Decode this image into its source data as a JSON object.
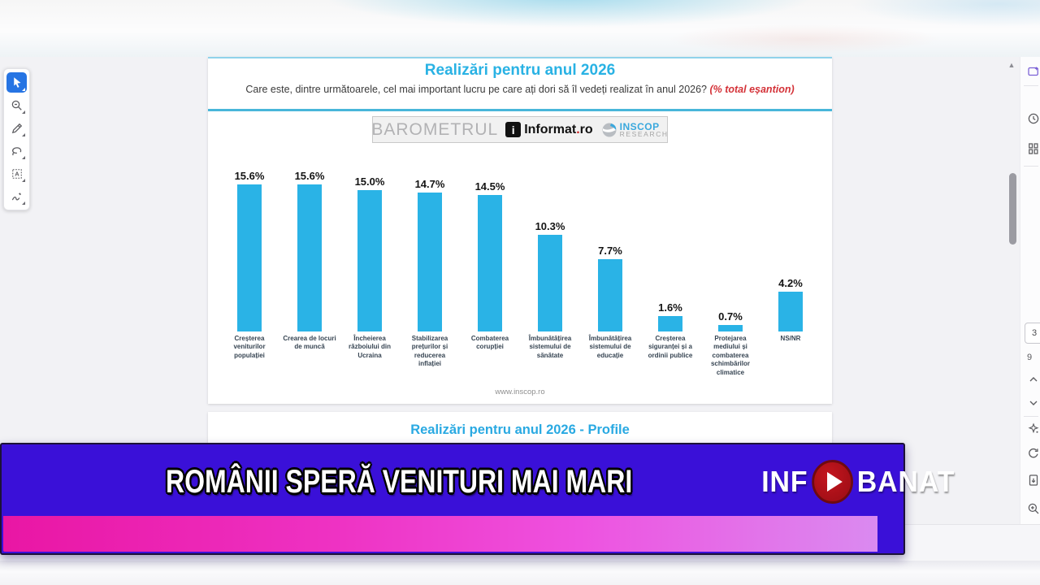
{
  "document": {
    "page3": {
      "title": "Realizări pentru anul 2026",
      "question": "Care este, dintre următoarele, cel mai important lucru pe care ați dori să îl vedeți realizat în anul 2026? ",
      "question_note": "(% total eșantion)",
      "brand_bar": {
        "left": "BAROMETRUL",
        "informat_icon_letter": "i",
        "informat_name": "Informat",
        "informat_dot": ".",
        "informat_tld": "ro",
        "inscop_line1": "INSCOP",
        "inscop_line2": "RESEARCH"
      },
      "source_url": "www.inscop.ro"
    },
    "page4": {
      "title": "Realizări pentru anul 2026 - Profile"
    }
  },
  "chart_data": {
    "type": "bar",
    "title": "Realizări pentru anul 2026",
    "categories": [
      "Creșterea veniturilor populației",
      "Crearea de locuri de muncă",
      "Încheierea războiului din Ucraina",
      "Stabilizarea prețurilor și reducerea inflației",
      "Combaterea corupției",
      "Îmbunătățirea sistemului de sănătate",
      "Îmbunătățirea sistemului de educație",
      "Creșterea siguranței și a ordinii publice",
      "Protejarea mediului și combaterea schimbărilor climatice",
      "NS/NR"
    ],
    "values": [
      15.6,
      15.6,
      15.0,
      14.7,
      14.5,
      10.3,
      7.7,
      1.6,
      0.7,
      4.2
    ],
    "labels": [
      "15.6%",
      "15.6%",
      "15.0%",
      "14.7%",
      "14.5%",
      "10.3%",
      "7.7%",
      "1.6%",
      "0.7%",
      "4.2%"
    ],
    "bar_color": "#2ab3e6",
    "ylim": [
      0,
      17
    ],
    "grid": false,
    "legend": false,
    "xlabel": "",
    "ylabel": ""
  },
  "left_toolbar": {
    "tools": [
      "select-tool",
      "loupe-tool",
      "pen-tool",
      "lasso-tool",
      "text-select-tool",
      "ink-signature-tool"
    ],
    "active_tool": "select-tool"
  },
  "right_toolbar": {
    "page_current": "3",
    "page_total": "9",
    "icons": [
      "screenshot-icon",
      "history-clock-icon",
      "grid-view-icon",
      "prev-page-icon",
      "next-page-icon",
      "effects-icon",
      "refresh-icon",
      "fit-page-icon",
      "zoom-in-icon",
      "zoom-out-icon"
    ]
  },
  "banner": {
    "headline": "ROMÂNII SPERĂ VENITURI MAI MARI",
    "brand_prefix": "INF",
    "brand_suffix": "BANAT",
    "colors": {
      "background": "#3a10d8",
      "strip_start": "#e916a4",
      "strip_end": "#da8af0",
      "play_button": "#a50f17"
    }
  },
  "theme": {
    "accent_cyan": "#29b2e4",
    "note_red": "#d43238",
    "bar_cyan": "#2ab3e6"
  }
}
